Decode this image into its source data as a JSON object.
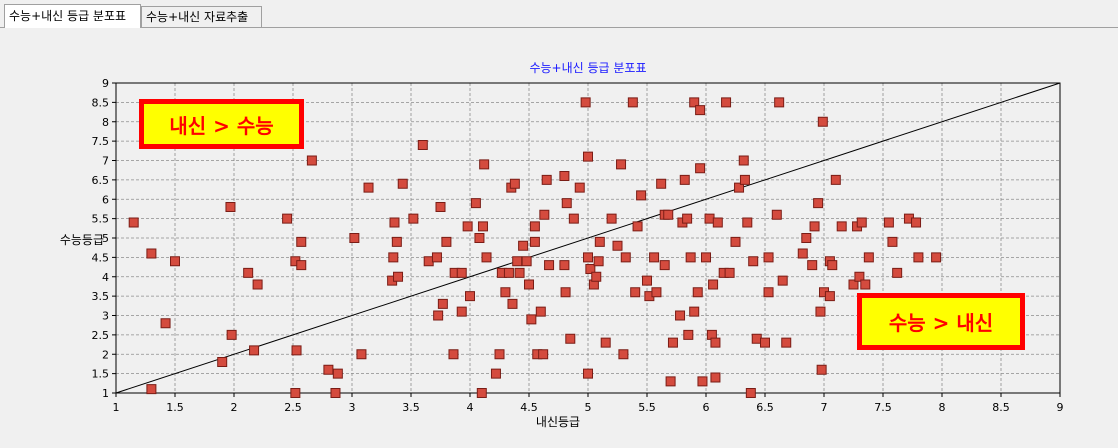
{
  "tabs": [
    {
      "label": "수능+내신 등급 분포표",
      "active": true
    },
    {
      "label": "수능+내신 자료추출",
      "active": false
    }
  ],
  "callouts": {
    "top_left": "내신 > 수능",
    "bottom_right": "수능 > 내신"
  },
  "colors": {
    "marker_fill": "#d44b3e",
    "marker_stroke": "#7a1d16",
    "title": "#1a1aff",
    "callout_bg": "#ffff00",
    "callout_border": "#ff0000"
  },
  "chart_data": {
    "type": "scatter",
    "title": "수능+내신 등급 분포표",
    "xlabel": "내신등급",
    "ylabel": "수능등급",
    "xlim": [
      1,
      9
    ],
    "ylim": [
      1,
      9
    ],
    "xticks": [
      "1",
      "1.5",
      "2",
      "2.5",
      "3",
      "3.5",
      "4",
      "4.5",
      "5",
      "5.5",
      "6",
      "6.5",
      "7",
      "7.5",
      "8",
      "8.5",
      "9"
    ],
    "yticks": [
      "1",
      "1.5",
      "2",
      "2.5",
      "3",
      "3.5",
      "4",
      "4.5",
      "5",
      "5.5",
      "6",
      "6.5",
      "7",
      "7.5",
      "8",
      "8.5",
      "9"
    ],
    "grid": true,
    "reference_line": {
      "x": [
        1,
        9
      ],
      "y": [
        1,
        9
      ]
    },
    "points": [
      [
        1.15,
        5.4
      ],
      [
        1.3,
        1.1
      ],
      [
        1.3,
        4.6
      ],
      [
        1.42,
        2.8
      ],
      [
        1.5,
        4.4
      ],
      [
        1.9,
        1.8
      ],
      [
        1.97,
        5.8
      ],
      [
        1.98,
        2.5
      ],
      [
        2.12,
        4.1
      ],
      [
        2.17,
        2.1
      ],
      [
        2.2,
        3.8
      ],
      [
        2.45,
        5.5
      ],
      [
        2.52,
        4.4
      ],
      [
        2.52,
        1.0
      ],
      [
        2.53,
        2.1
      ],
      [
        2.57,
        4.9
      ],
      [
        2.57,
        4.3
      ],
      [
        2.66,
        7.0
      ],
      [
        2.8,
        1.6
      ],
      [
        2.86,
        1.0
      ],
      [
        2.88,
        1.5
      ],
      [
        3.02,
        5.0
      ],
      [
        3.08,
        2.0
      ],
      [
        3.14,
        6.3
      ],
      [
        3.34,
        3.9
      ],
      [
        3.35,
        4.5
      ],
      [
        3.36,
        5.4
      ],
      [
        3.38,
        4.9
      ],
      [
        3.39,
        4.0
      ],
      [
        3.43,
        6.4
      ],
      [
        3.52,
        5.5
      ],
      [
        3.6,
        7.4
      ],
      [
        3.65,
        4.4
      ],
      [
        3.72,
        4.5
      ],
      [
        3.73,
        3.0
      ],
      [
        3.75,
        5.8
      ],
      [
        3.77,
        3.3
      ],
      [
        3.8,
        4.9
      ],
      [
        3.86,
        2.0
      ],
      [
        3.87,
        4.1
      ],
      [
        3.93,
        3.1
      ],
      [
        3.93,
        4.1
      ],
      [
        3.98,
        5.3
      ],
      [
        4.0,
        3.5
      ],
      [
        4.05,
        5.9
      ],
      [
        4.08,
        5.0
      ],
      [
        4.1,
        1.0
      ],
      [
        4.11,
        5.3
      ],
      [
        4.12,
        6.9
      ],
      [
        4.14,
        4.5
      ],
      [
        4.22,
        1.5
      ],
      [
        4.25,
        2.0
      ],
      [
        4.27,
        4.1
      ],
      [
        4.3,
        3.6
      ],
      [
        4.33,
        4.1
      ],
      [
        4.35,
        6.3
      ],
      [
        4.36,
        3.3
      ],
      [
        4.38,
        6.4
      ],
      [
        4.4,
        4.4
      ],
      [
        4.42,
        4.1
      ],
      [
        4.45,
        4.8
      ],
      [
        4.48,
        4.4
      ],
      [
        4.5,
        3.8
      ],
      [
        4.52,
        2.9
      ],
      [
        4.55,
        5.3
      ],
      [
        4.55,
        4.9
      ],
      [
        4.57,
        2.0
      ],
      [
        4.6,
        3.1
      ],
      [
        4.62,
        2.0
      ],
      [
        4.63,
        5.6
      ],
      [
        4.65,
        6.5
      ],
      [
        4.67,
        4.3
      ],
      [
        4.8,
        6.6
      ],
      [
        4.8,
        4.3
      ],
      [
        4.81,
        3.6
      ],
      [
        4.82,
        5.9
      ],
      [
        4.85,
        2.4
      ],
      [
        4.88,
        5.5
      ],
      [
        4.93,
        6.3
      ],
      [
        4.98,
        8.5
      ],
      [
        5.0,
        7.1
      ],
      [
        5.0,
        4.5
      ],
      [
        5.0,
        1.5
      ],
      [
        5.02,
        4.2
      ],
      [
        5.05,
        3.8
      ],
      [
        5.07,
        4.0
      ],
      [
        5.09,
        4.4
      ],
      [
        5.1,
        4.9
      ],
      [
        5.15,
        2.3
      ],
      [
        5.2,
        5.5
      ],
      [
        5.25,
        4.8
      ],
      [
        5.28,
        6.9
      ],
      [
        5.3,
        2.0
      ],
      [
        5.32,
        4.5
      ],
      [
        5.38,
        8.5
      ],
      [
        5.4,
        3.6
      ],
      [
        5.42,
        5.3
      ],
      [
        5.45,
        6.1
      ],
      [
        5.5,
        3.9
      ],
      [
        5.52,
        3.5
      ],
      [
        5.56,
        4.5
      ],
      [
        5.58,
        3.6
      ],
      [
        5.62,
        6.4
      ],
      [
        5.65,
        5.6
      ],
      [
        5.65,
        4.3
      ],
      [
        5.68,
        5.6
      ],
      [
        5.7,
        1.3
      ],
      [
        5.72,
        2.3
      ],
      [
        5.78,
        3.0
      ],
      [
        5.8,
        5.4
      ],
      [
        5.82,
        6.5
      ],
      [
        5.84,
        5.5
      ],
      [
        5.85,
        2.5
      ],
      [
        5.87,
        4.5
      ],
      [
        5.9,
        3.1
      ],
      [
        5.9,
        8.5
      ],
      [
        5.93,
        3.6
      ],
      [
        5.95,
        8.3
      ],
      [
        5.95,
        6.8
      ],
      [
        5.97,
        1.3
      ],
      [
        6.0,
        4.5
      ],
      [
        6.03,
        5.5
      ],
      [
        6.05,
        2.5
      ],
      [
        6.06,
        3.8
      ],
      [
        6.08,
        1.4
      ],
      [
        6.08,
        2.3
      ],
      [
        6.1,
        5.4
      ],
      [
        6.15,
        4.1
      ],
      [
        6.17,
        8.5
      ],
      [
        6.2,
        4.1
      ],
      [
        6.25,
        4.9
      ],
      [
        6.28,
        6.3
      ],
      [
        6.32,
        7.0
      ],
      [
        6.33,
        6.5
      ],
      [
        6.35,
        5.4
      ],
      [
        6.38,
        1.0
      ],
      [
        6.4,
        4.4
      ],
      [
        6.43,
        2.4
      ],
      [
        6.5,
        2.3
      ],
      [
        6.53,
        4.5
      ],
      [
        6.53,
        3.6
      ],
      [
        6.6,
        5.6
      ],
      [
        6.62,
        8.5
      ],
      [
        6.65,
        3.9
      ],
      [
        6.68,
        2.3
      ],
      [
        6.82,
        4.6
      ],
      [
        6.85,
        5.0
      ],
      [
        6.9,
        4.3
      ],
      [
        6.92,
        5.3
      ],
      [
        6.95,
        5.9
      ],
      [
        6.97,
        3.1
      ],
      [
        6.98,
        1.6
      ],
      [
        6.99,
        8.0
      ],
      [
        7.0,
        3.6
      ],
      [
        7.05,
        4.4
      ],
      [
        7.05,
        3.5
      ],
      [
        7.07,
        4.3
      ],
      [
        7.1,
        6.5
      ],
      [
        7.15,
        5.3
      ],
      [
        7.25,
        3.8
      ],
      [
        7.28,
        5.3
      ],
      [
        7.3,
        4.0
      ],
      [
        7.32,
        5.4
      ],
      [
        7.35,
        3.8
      ],
      [
        7.38,
        4.5
      ],
      [
        7.55,
        5.4
      ],
      [
        7.58,
        4.9
      ],
      [
        7.62,
        4.1
      ],
      [
        7.72,
        5.5
      ],
      [
        7.78,
        5.4
      ],
      [
        7.8,
        4.5
      ],
      [
        7.95,
        4.5
      ]
    ]
  }
}
